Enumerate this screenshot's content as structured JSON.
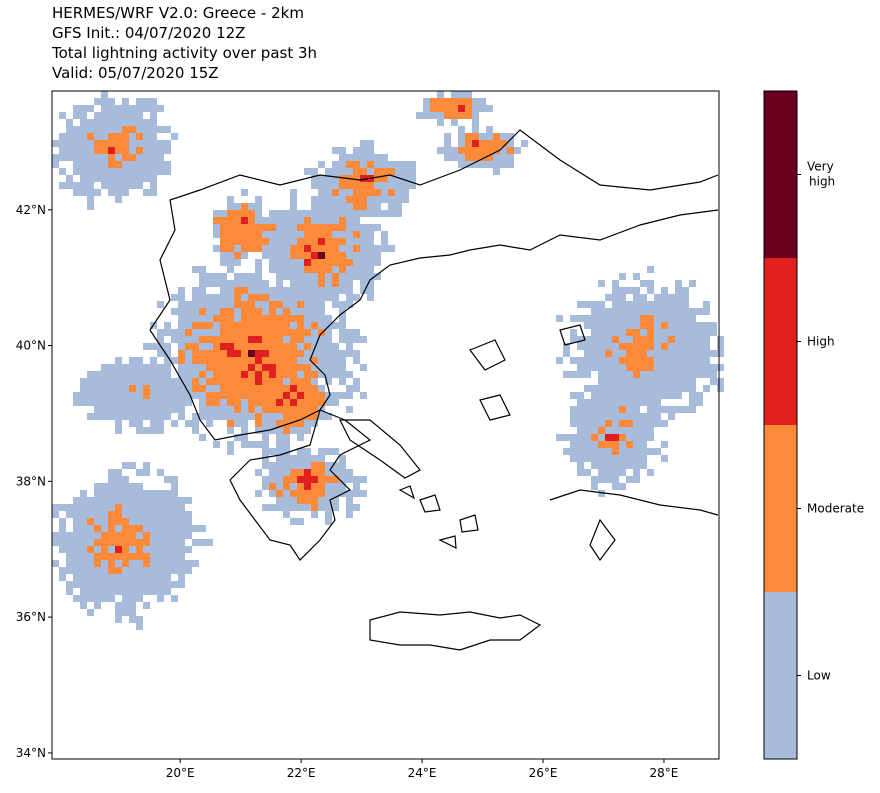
{
  "header": {
    "lines": [
      "HERMES/WRF V2.0: Greece - 2km",
      "GFS Init.: 04/07/2020 12Z",
      "Total lightning activity over past 3h",
      "Valid: 05/07/2020 15Z"
    ]
  },
  "map": {
    "xlim": [
      17.88,
      28.91
    ],
    "ylim": [
      33.91,
      43.75
    ],
    "xticks": [
      {
        "value": 20,
        "label": "20°E"
      },
      {
        "value": 22,
        "label": "22°E"
      },
      {
        "value": 24,
        "label": "24°E"
      },
      {
        "value": 26,
        "label": "26°E"
      },
      {
        "value": 28,
        "label": "28°E"
      }
    ],
    "yticks": [
      {
        "value": 34,
        "label": "34°N"
      },
      {
        "value": 36,
        "label": "36°N"
      },
      {
        "value": 38,
        "label": "38°N"
      },
      {
        "value": 40,
        "label": "40°N"
      },
      {
        "value": 42,
        "label": "42°N"
      }
    ]
  },
  "colorbar": {
    "levels": [
      {
        "label": "Low",
        "color": "#a7bbdb"
      },
      {
        "label": "Moderate",
        "color": "#fb8b3a"
      },
      {
        "label": "High",
        "color": "#e0201f"
      },
      {
        "label": "Very high",
        "color": "#67001f"
      }
    ]
  }
}
